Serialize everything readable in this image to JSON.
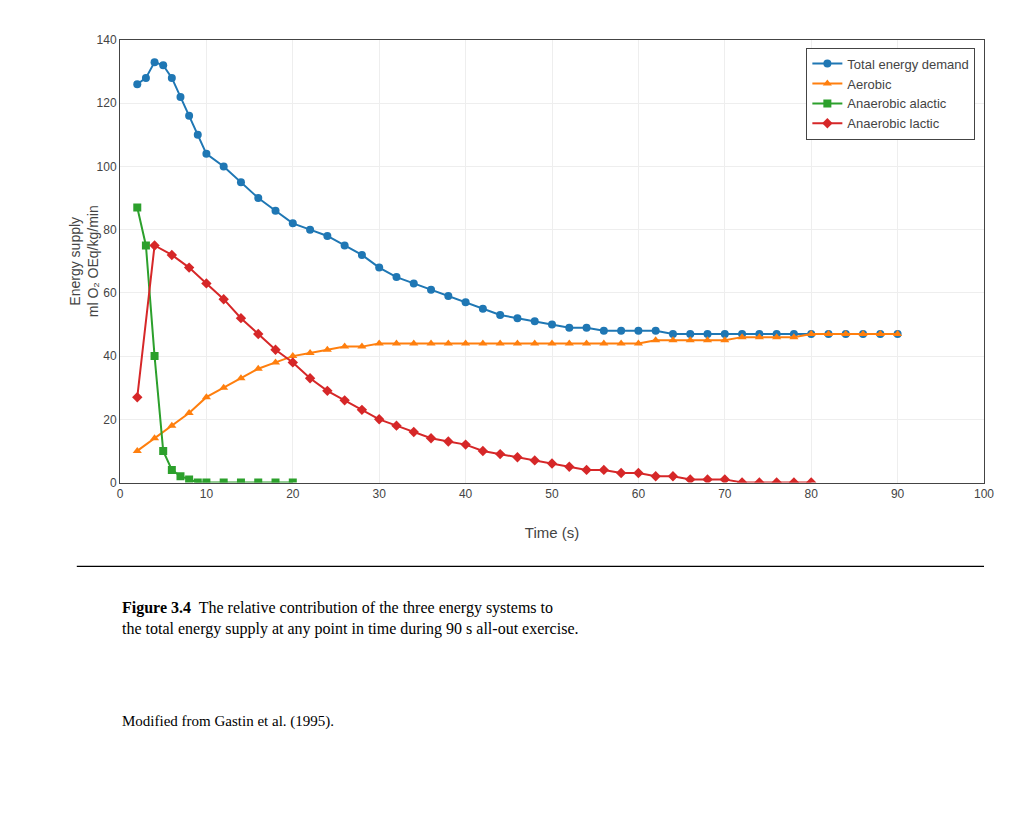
{
  "chart_data": {
    "type": "line",
    "xlabel": "Time (s)",
    "ylabel": "Energy supply\nml O₂ OEq/kg/min",
    "series": [
      {
        "name": "Total energy demand",
        "marker": "circle",
        "x": [
          2,
          3,
          4,
          5,
          6,
          7,
          8,
          9,
          10,
          12,
          14,
          16,
          18,
          20,
          22,
          24,
          26,
          28,
          30,
          32,
          34,
          36,
          38,
          40,
          42,
          44,
          46,
          48,
          50,
          52,
          54,
          56,
          58,
          60,
          62,
          64,
          66,
          68,
          70,
          72,
          74,
          76,
          78,
          80,
          82,
          84,
          86,
          88,
          90
        ],
        "values": [
          126,
          128,
          133,
          132,
          128,
          122,
          116,
          110,
          104,
          100,
          95,
          90,
          86,
          82,
          80,
          78,
          75,
          72,
          68,
          65,
          63,
          61,
          59,
          57,
          55,
          53,
          52,
          51,
          50,
          49,
          49,
          48,
          48,
          48,
          48,
          47,
          47,
          47,
          47,
          47,
          47,
          47,
          47,
          47,
          47,
          47,
          47,
          47,
          47
        ]
      },
      {
        "name": "Aerobic",
        "marker": "triangle-up",
        "x": [
          2,
          4,
          6,
          8,
          10,
          12,
          14,
          16,
          18,
          20,
          22,
          24,
          26,
          28,
          30,
          32,
          34,
          36,
          38,
          40,
          42,
          44,
          46,
          48,
          50,
          52,
          54,
          56,
          58,
          60,
          62,
          64,
          66,
          68,
          70,
          72,
          74,
          76,
          78,
          80,
          82,
          84,
          86,
          88,
          90
        ],
        "values": [
          10,
          14,
          18,
          22,
          27,
          30,
          33,
          36,
          38,
          40,
          41,
          42,
          43,
          43,
          44,
          44,
          44,
          44,
          44,
          44,
          44,
          44,
          44,
          44,
          44,
          44,
          44,
          44,
          44,
          44,
          45,
          45,
          45,
          45,
          45,
          46,
          46,
          46,
          46,
          47,
          47,
          47,
          47,
          47,
          47
        ]
      },
      {
        "name": "Anaerobic alactic",
        "marker": "square",
        "x": [
          2,
          3,
          4,
          5,
          6,
          7,
          8,
          9,
          10,
          12,
          14,
          16,
          18,
          20
        ],
        "values": [
          87,
          75,
          40,
          10,
          4,
          2,
          1,
          0,
          0,
          0,
          0,
          0,
          0,
          0
        ]
      },
      {
        "name": "Anaerobic lactic",
        "marker": "diamond",
        "x": [
          2,
          4,
          6,
          8,
          10,
          12,
          14,
          16,
          18,
          20,
          22,
          24,
          26,
          28,
          30,
          32,
          34,
          36,
          38,
          40,
          42,
          44,
          46,
          48,
          50,
          52,
          54,
          56,
          58,
          60,
          62,
          64,
          66,
          68,
          70,
          72,
          74,
          76,
          78,
          80
        ],
        "values": [
          27,
          75,
          72,
          68,
          63,
          58,
          52,
          47,
          42,
          38,
          33,
          29,
          26,
          23,
          20,
          18,
          16,
          14,
          13,
          12,
          10,
          9,
          8,
          7,
          6,
          5,
          4,
          4,
          3,
          3,
          2,
          2,
          1,
          1,
          1,
          0,
          0,
          0,
          0,
          0
        ]
      }
    ],
    "xlim": [
      0,
      100
    ],
    "ylim": [
      0,
      140
    ],
    "xticks": [
      0,
      10,
      20,
      30,
      40,
      50,
      60,
      70,
      80,
      90,
      100
    ],
    "yticks": [
      0,
      20,
      40,
      60,
      80,
      100,
      120,
      140
    ],
    "grid": true,
    "legend": "upper right",
    "annotations": [
      "Figure 3.4",
      "The relative contribution of the three energy systems to\nthe total energy supply at any point in time during 90 s all-out exercise.",
      "Modified from Gastin et al. (1995)."
    ]
  }
}
